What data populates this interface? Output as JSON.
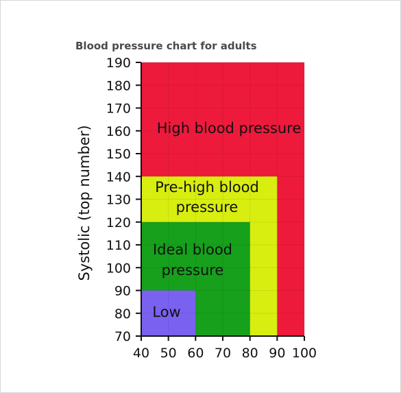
{
  "chart_data": {
    "type": "area",
    "title": "Blood pressure chart for adults",
    "xlabel": "",
    "ylabel": "Systolic (top number)",
    "xlim": [
      40,
      100
    ],
    "ylim": [
      70,
      190
    ],
    "x_ticks": [
      40,
      50,
      60,
      70,
      80,
      90,
      100
    ],
    "y_ticks": [
      70,
      80,
      90,
      100,
      110,
      120,
      130,
      140,
      150,
      160,
      170,
      180,
      190
    ],
    "grid": true,
    "regions": [
      {
        "name": "High blood pressure",
        "label_lines": [
          "High blood pressure"
        ],
        "x": [
          40,
          100
        ],
        "y": [
          70,
          190
        ],
        "color": "#ee1a3c"
      },
      {
        "name": "Pre-high blood pressure",
        "label_lines": [
          "Pre-high blood",
          "pressure"
        ],
        "x": [
          40,
          90
        ],
        "y": [
          70,
          140
        ],
        "color": "#d8ee10"
      },
      {
        "name": "Ideal blood pressure",
        "label_lines": [
          "Ideal blood",
          "pressure"
        ],
        "x": [
          40,
          80
        ],
        "y": [
          70,
          120
        ],
        "color": "#16a01c"
      },
      {
        "name": "Low",
        "label_lines": [
          "Low"
        ],
        "x": [
          40,
          60
        ],
        "y": [
          70,
          90
        ],
        "color": "#7b61f0"
      }
    ]
  }
}
